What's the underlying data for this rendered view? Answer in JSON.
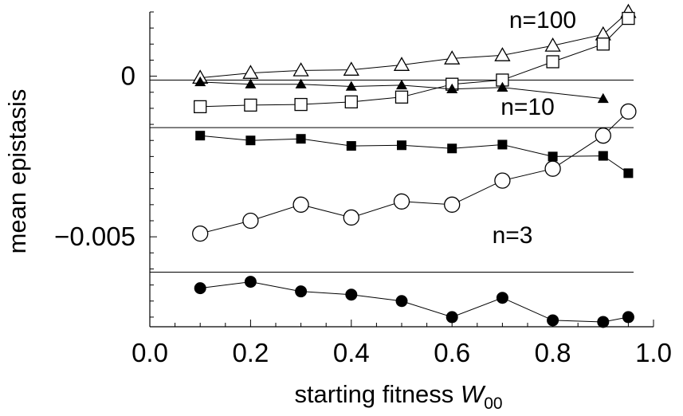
{
  "chart_data": {
    "type": "scatter",
    "xlabel": "starting fitness W00",
    "xlabel_parts": {
      "main": "starting fitness ",
      "var": "W",
      "sub": "00"
    },
    "ylabel": "mean epistasis",
    "xlim": [
      0.0,
      1.0
    ],
    "ylim": [
      -0.0078,
      0.002
    ],
    "xticks": [
      {
        "value": 0.0,
        "label": "0.0"
      },
      {
        "value": 0.2,
        "label": "0.2"
      },
      {
        "value": 0.4,
        "label": "0.4"
      },
      {
        "value": 0.6,
        "label": "0.6"
      },
      {
        "value": 0.8,
        "label": "0.8"
      },
      {
        "value": 1.0,
        "label": "1.0"
      }
    ],
    "yticks": [
      {
        "value": 0,
        "label": "0"
      },
      {
        "value": -0.005,
        "label": "−0.005"
      }
    ],
    "reference_lines": [
      {
        "y": -0.00012
      },
      {
        "y": -0.0016
      },
      {
        "y": -0.0061
      }
    ],
    "annotations": [
      {
        "text": "n=100",
        "x": 0.78,
        "y": 0.0015
      },
      {
        "text": "n=10",
        "x": 0.75,
        "y": -0.0012
      },
      {
        "text": "n=3",
        "x": 0.72,
        "y": -0.0052
      }
    ],
    "series": [
      {
        "marker": "triangle-open",
        "x": [
          0.1,
          0.2,
          0.3,
          0.4,
          0.5,
          0.6,
          0.7,
          0.8,
          0.9,
          0.95
        ],
        "y": [
          -5e-05,
          0.0001,
          0.00018,
          0.0002,
          0.00035,
          0.00055,
          0.00065,
          0.00095,
          0.0013,
          0.002
        ]
      },
      {
        "marker": "square-open",
        "x": [
          0.1,
          0.2,
          0.3,
          0.4,
          0.5,
          0.6,
          0.7,
          0.8,
          0.9,
          0.95
        ],
        "y": [
          -0.00095,
          -0.0009,
          -0.00088,
          -0.0008,
          -0.00065,
          -0.00025,
          -0.00012,
          0.00045,
          0.001,
          0.0018
        ]
      },
      {
        "marker": "triangle-filled",
        "x": [
          0.1,
          0.2,
          0.3,
          0.4,
          0.5,
          0.6,
          0.7,
          0.9
        ],
        "y": [
          -0.00018,
          -0.00025,
          -0.00025,
          -0.00032,
          -0.00028,
          -0.0004,
          -0.00035,
          -0.0007
        ]
      },
      {
        "marker": "square-filled",
        "x": [
          0.1,
          0.2,
          0.3,
          0.4,
          0.5,
          0.6,
          0.7,
          0.8,
          0.9,
          0.95
        ],
        "y": [
          -0.00185,
          -0.002,
          -0.00195,
          -0.00217,
          -0.00215,
          -0.00225,
          -0.00213,
          -0.0025,
          -0.00248,
          -0.00302
        ]
      },
      {
        "marker": "circle-open",
        "x": [
          0.1,
          0.2,
          0.3,
          0.4,
          0.5,
          0.6,
          0.7,
          0.8,
          0.9,
          0.95
        ],
        "y": [
          -0.0049,
          -0.0045,
          -0.004,
          -0.0044,
          -0.0039,
          -0.004,
          -0.00325,
          -0.00288,
          -0.00185,
          -0.0011
        ]
      },
      {
        "marker": "circle-filled",
        "x": [
          0.1,
          0.2,
          0.3,
          0.4,
          0.5,
          0.6,
          0.7,
          0.8,
          0.9,
          0.95
        ],
        "y": [
          -0.0066,
          -0.0064,
          -0.0067,
          -0.0068,
          -0.007,
          -0.0075,
          -0.0069,
          -0.0076,
          -0.00765,
          -0.0075
        ]
      }
    ]
  }
}
